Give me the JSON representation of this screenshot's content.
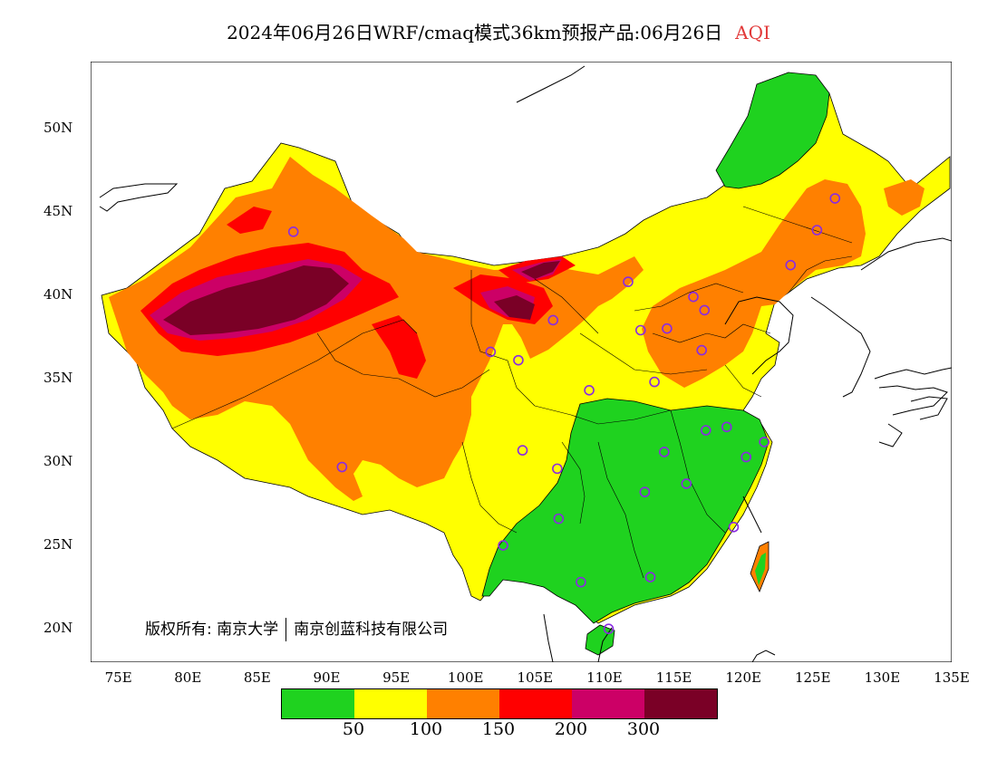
{
  "title": {
    "main": "2024年06月26日WRF/cmaq模式36km预报产品:06月26日",
    "variable": "AQI"
  },
  "map": {
    "lon_range": [
      73,
      135
    ],
    "lat_range": [
      18,
      54
    ],
    "x_ticks": [
      "75E",
      "80E",
      "85E",
      "90E",
      "95E",
      "100E",
      "105E",
      "110E",
      "115E",
      "120E",
      "125E",
      "130E",
      "135E"
    ],
    "y_ticks": [
      "50N",
      "45N",
      "40N",
      "35N",
      "30N",
      "25N",
      "20N"
    ],
    "stations_lonlat": [
      [
        87.6,
        43.8
      ],
      [
        101.8,
        36.6
      ],
      [
        103.8,
        36.1
      ],
      [
        106.3,
        38.5
      ],
      [
        111.7,
        40.8
      ],
      [
        116.4,
        39.9
      ],
      [
        117.2,
        39.1
      ],
      [
        114.5,
        38.0
      ],
      [
        112.6,
        37.9
      ],
      [
        117.0,
        36.7
      ],
      [
        113.6,
        34.8
      ],
      [
        108.9,
        34.3
      ],
      [
        104.1,
        30.7
      ],
      [
        106.6,
        29.6
      ],
      [
        91.1,
        29.7
      ],
      [
        102.7,
        25.0
      ],
      [
        106.7,
        26.6
      ],
      [
        108.3,
        22.8
      ],
      [
        113.3,
        23.1
      ],
      [
        110.3,
        20.0
      ],
      [
        112.9,
        28.2
      ],
      [
        114.3,
        30.6
      ],
      [
        115.9,
        28.7
      ],
      [
        117.3,
        31.9
      ],
      [
        118.8,
        32.1
      ],
      [
        120.2,
        30.3
      ],
      [
        121.5,
        31.2
      ],
      [
        119.3,
        26.1
      ],
      [
        123.4,
        41.8
      ],
      [
        125.3,
        43.9
      ],
      [
        126.6,
        45.8
      ]
    ]
  },
  "legend": {
    "colors": [
      "#1fd21f",
      "#ffff00",
      "#ff8000",
      "#ff0000",
      "#cc0066",
      "#7a0026"
    ],
    "labels": [
      "50",
      "100",
      "150",
      "200",
      "300"
    ]
  },
  "copyright": {
    "owner1": "版权所有: 南京大学",
    "owner2": "南京创蓝科技有限公司"
  }
}
